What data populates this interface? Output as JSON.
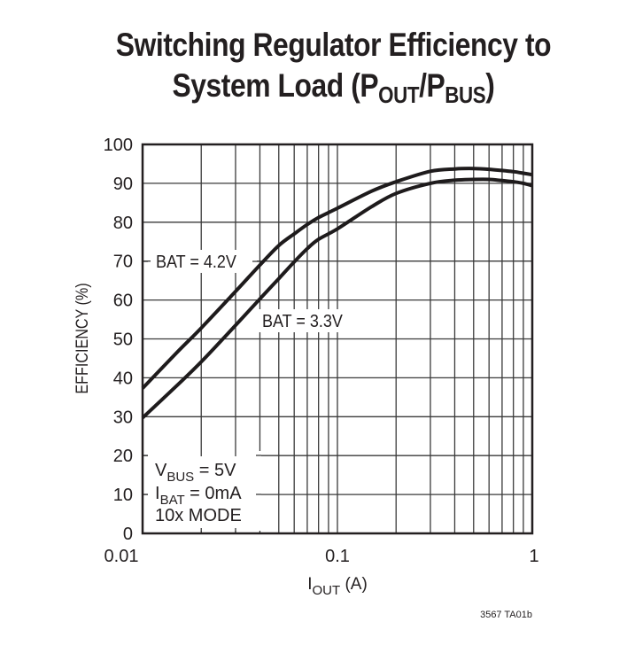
{
  "title": {
    "line1": "Switching Regulator Efficiency to",
    "line2_prefix": "System Load (P",
    "line2_sub1": "OUT",
    "line2_mid": "/P",
    "line2_sub2": "BUS",
    "line2_suffix": ")"
  },
  "footnote": "3567 TA01b",
  "colors": {
    "curve": "#1e1b1c",
    "grid": "#3a3a3a",
    "frame": "#231f20",
    "background": "#ffffff"
  },
  "chart_data": {
    "type": "line",
    "title": "Switching Regulator Efficiency to System Load (POUT/PBUS)",
    "xlabel": "IOUT (A)",
    "xlabel_main": "I",
    "xlabel_sub": "OUT",
    "xlabel_unit": " (A)",
    "ylabel": "EFFICIENCY (%)",
    "xscale": "log",
    "xlim": [
      0.01,
      1
    ],
    "ylim": [
      0,
      100
    ],
    "grid": true,
    "x_tick_labels": [
      "0.01",
      "0.1",
      "1"
    ],
    "x_ticks": [
      0.01,
      0.1,
      1
    ],
    "x_minor_gridlines": [
      0.02,
      0.03,
      0.04,
      0.05,
      0.06,
      0.07,
      0.08,
      0.09,
      0.2,
      0.3,
      0.4,
      0.5,
      0.6,
      0.7,
      0.8,
      0.9
    ],
    "y_ticks": [
      0,
      10,
      20,
      30,
      40,
      50,
      60,
      70,
      80,
      90,
      100
    ],
    "y_tick_labels": [
      "0",
      "10",
      "20",
      "30",
      "40",
      "50",
      "60",
      "70",
      "80",
      "90",
      "100"
    ],
    "series": [
      {
        "name": "BAT = 4.2V",
        "x": [
          0.01,
          0.015,
          0.02,
          0.03,
          0.04,
          0.05,
          0.06,
          0.07,
          0.08,
          0.1,
          0.15,
          0.2,
          0.3,
          0.4,
          0.5,
          0.6,
          0.7,
          0.8,
          0.9,
          1.0
        ],
        "values": [
          37.3,
          46.5,
          52.8,
          62.2,
          69.0,
          74.0,
          77.0,
          79.4,
          81.2,
          83.6,
          88.0,
          90.4,
          93.1,
          93.7,
          93.8,
          93.6,
          93.3,
          93.0,
          92.6,
          92.2
        ]
      },
      {
        "name": "BAT = 3.3V",
        "x": [
          0.01,
          0.015,
          0.02,
          0.03,
          0.04,
          0.05,
          0.06,
          0.07,
          0.08,
          0.1,
          0.15,
          0.2,
          0.3,
          0.4,
          0.5,
          0.6,
          0.7,
          0.8,
          0.9,
          1.0
        ],
        "values": [
          29.7,
          38.0,
          44.1,
          53.5,
          60.3,
          65.5,
          69.8,
          73.2,
          75.6,
          78.3,
          84.0,
          87.4,
          90.0,
          90.8,
          91.0,
          91.0,
          90.7,
          90.4,
          90.0,
          89.4
        ]
      }
    ],
    "annotations": [
      {
        "text": "BAT = 4.2V",
        "x": 0.026,
        "y": 70
      },
      {
        "text": "BAT = 3.3V",
        "x": 0.07,
        "y": 55
      },
      {
        "text": "VBUS = 5V",
        "main": "V",
        "sub": "BUS",
        "rest": " = 5V"
      },
      {
        "text": "IBAT = 0mA",
        "main": "I",
        "sub": "BAT",
        "rest": " = 0mA"
      },
      {
        "text": "10x MODE",
        "main": "10x MODE",
        "sub": "",
        "rest": ""
      }
    ]
  }
}
